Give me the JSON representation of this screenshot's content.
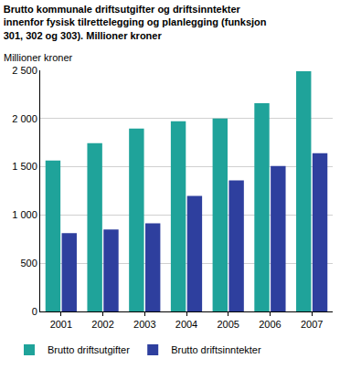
{
  "chart_data": {
    "type": "bar",
    "title": "Brutto kommunale driftsutgifter og driftsinntekter\ninnenfor fysisk tilrettelegging og planlegging (funksjon\n301, 302 og 303). Millioner kroner",
    "y_label": "Millioner kroner",
    "categories": [
      "2001",
      "2002",
      "2003",
      "2004",
      "2005",
      "2006",
      "2007"
    ],
    "series": [
      {
        "name": "Brutto driftsutgifter",
        "color": "#1fa39a",
        "values": [
          1566,
          1745,
          1896,
          1972,
          2000,
          2160,
          2490
        ]
      },
      {
        "name": "Brutto driftsinntekter",
        "color": "#2e3f9e",
        "values": [
          811,
          849,
          915,
          1198,
          1358,
          1509,
          1641
        ]
      }
    ],
    "ylim": [
      0,
      2500
    ],
    "yticks": [
      0,
      500,
      {
        "value": 1000,
        "label": "1 000"
      },
      {
        "value": 1500,
        "label": "1 500"
      },
      {
        "value": 2000,
        "label": "2 000"
      },
      {
        "value": 2500,
        "label": "2 500"
      }
    ],
    "grid": true,
    "legend": "bottom"
  }
}
